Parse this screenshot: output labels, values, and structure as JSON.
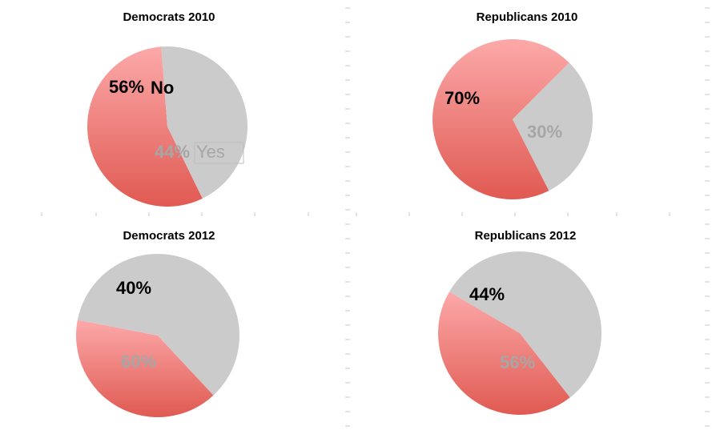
{
  "colors": {
    "no_top": "#fca9a9",
    "no_bottom": "#e05a52",
    "yes": "#cbcbcb",
    "no_label": "#000000",
    "yes_label": "#a6a6a6"
  },
  "chart_data": [
    {
      "type": "pie",
      "title": "Democrats 2010",
      "slices": [
        {
          "category": "No",
          "value": 56,
          "label": "56%",
          "series_label": "No"
        },
        {
          "category": "Yes",
          "value": 44,
          "label": "44%",
          "series_label": "Yes"
        }
      ]
    },
    {
      "type": "pie",
      "title": "Republicans 2010",
      "slices": [
        {
          "category": "No",
          "value": 70,
          "label": "70%",
          "series_label": ""
        },
        {
          "category": "Yes",
          "value": 30,
          "label": "30%",
          "series_label": ""
        }
      ]
    },
    {
      "type": "pie",
      "title": "Democrats 2012",
      "slices": [
        {
          "category": "No",
          "value": 40,
          "label": "40%",
          "series_label": ""
        },
        {
          "category": "Yes",
          "value": 60,
          "label": "60%",
          "series_label": ""
        }
      ]
    },
    {
      "type": "pie",
      "title": "Republicans 2012",
      "slices": [
        {
          "category": "No",
          "value": 44,
          "label": "44%",
          "series_label": ""
        },
        {
          "category": "Yes",
          "value": 56,
          "label": "56%",
          "series_label": ""
        }
      ]
    }
  ]
}
